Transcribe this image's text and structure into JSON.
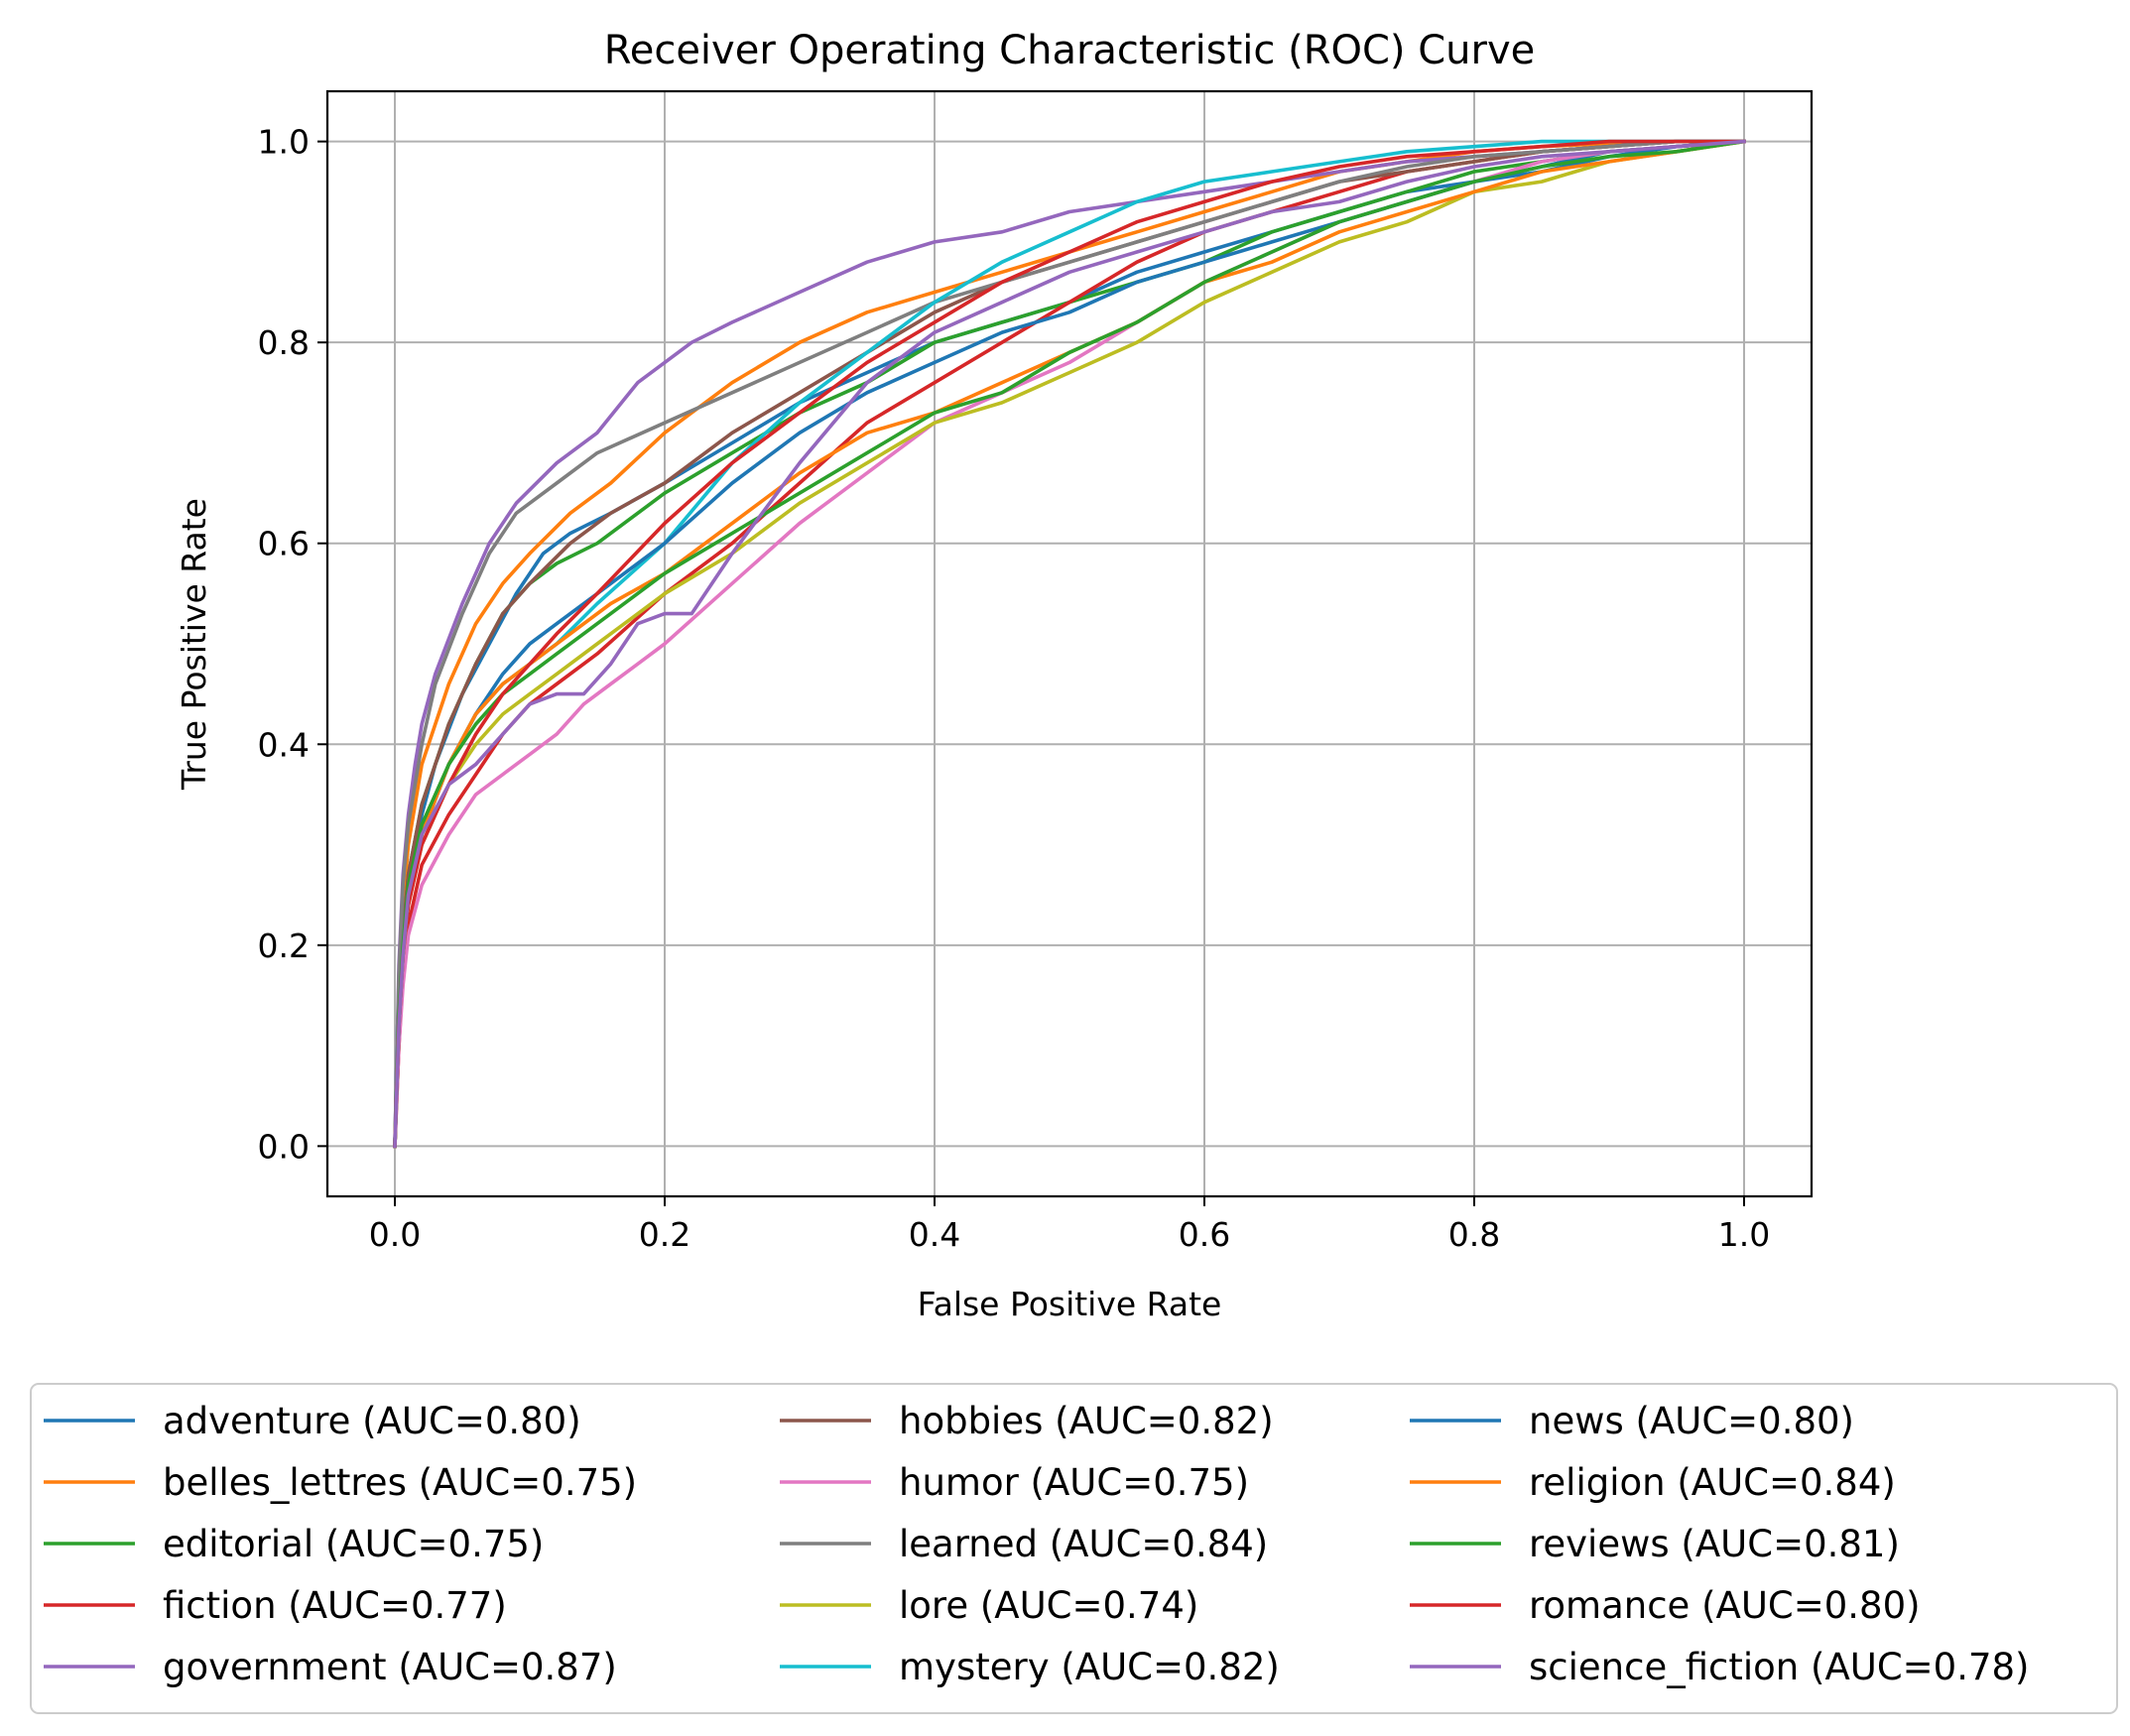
{
  "chart_data": {
    "type": "line",
    "title": "Receiver Operating Characteristic (ROC) Curve",
    "xlabel": "False Positive Rate",
    "ylabel": "True Positive Rate",
    "xlim": [
      -0.05,
      1.05
    ],
    "ylim": [
      -0.05,
      1.05
    ],
    "xticks": [
      "0.0",
      "0.2",
      "0.4",
      "0.6",
      "0.8",
      "1.0"
    ],
    "yticks": [
      "0.0",
      "0.2",
      "0.4",
      "0.6",
      "0.8",
      "1.0"
    ],
    "grid": true,
    "legend_position": "bottom, 3 columns",
    "series": [
      {
        "name": "adventure (AUC=0.80)",
        "color": "#1f77b4",
        "x": [
          0,
          0.002,
          0.005,
          0.01,
          0.02,
          0.03,
          0.05,
          0.07,
          0.09,
          0.11,
          0.13,
          0.16,
          0.2,
          0.25,
          0.3,
          0.35,
          0.4,
          0.45,
          0.5,
          0.55,
          0.6,
          0.65,
          0.7,
          0.75,
          0.8,
          0.85,
          0.9,
          0.95,
          1.0
        ],
        "y": [
          0,
          0.12,
          0.2,
          0.26,
          0.33,
          0.38,
          0.45,
          0.5,
          0.55,
          0.59,
          0.61,
          0.63,
          0.66,
          0.7,
          0.74,
          0.77,
          0.8,
          0.82,
          0.84,
          0.87,
          0.89,
          0.91,
          0.93,
          0.95,
          0.96,
          0.975,
          0.99,
          0.995,
          1.0
        ]
      },
      {
        "name": "belles_lettres (AUC=0.75)",
        "color": "#ff7f0e",
        "x": [
          0,
          0.003,
          0.006,
          0.01,
          0.02,
          0.04,
          0.06,
          0.08,
          0.1,
          0.13,
          0.16,
          0.2,
          0.25,
          0.3,
          0.35,
          0.4,
          0.45,
          0.5,
          0.55,
          0.6,
          0.65,
          0.7,
          0.75,
          0.8,
          0.85,
          0.9,
          0.95,
          1.0
        ],
        "y": [
          0,
          0.15,
          0.24,
          0.3,
          0.38,
          0.46,
          0.52,
          0.56,
          0.59,
          0.63,
          0.66,
          0.71,
          0.76,
          0.8,
          0.83,
          0.85,
          0.87,
          0.89,
          0.91,
          0.93,
          0.95,
          0.97,
          0.98,
          0.99,
          0.995,
          0.998,
          1.0,
          1.0
        ]
      },
      {
        "name": "editorial (AUC=0.75)",
        "color": "#2ca02c",
        "x": [
          0,
          0.003,
          0.006,
          0.01,
          0.02,
          0.04,
          0.06,
          0.08,
          0.1,
          0.12,
          0.15,
          0.2,
          0.25,
          0.3,
          0.35,
          0.4,
          0.45,
          0.5,
          0.55,
          0.6,
          0.65,
          0.7,
          0.75,
          0.8,
          0.85,
          0.9,
          0.95,
          1.0
        ],
        "y": [
          0,
          0.13,
          0.21,
          0.27,
          0.34,
          0.42,
          0.48,
          0.53,
          0.56,
          0.58,
          0.6,
          0.65,
          0.69,
          0.73,
          0.76,
          0.8,
          0.82,
          0.84,
          0.86,
          0.88,
          0.91,
          0.93,
          0.95,
          0.97,
          0.98,
          0.99,
          0.995,
          1.0
        ]
      },
      {
        "name": "fiction (AUC=0.77)",
        "color": "#d62728",
        "x": [
          0,
          0.003,
          0.006,
          0.01,
          0.02,
          0.04,
          0.06,
          0.08,
          0.1,
          0.12,
          0.15,
          0.2,
          0.25,
          0.3,
          0.35,
          0.4,
          0.45,
          0.5,
          0.55,
          0.6,
          0.65,
          0.7,
          0.75,
          0.8,
          0.85,
          0.9,
          0.95,
          1.0
        ],
        "y": [
          0,
          0.1,
          0.17,
          0.22,
          0.28,
          0.33,
          0.37,
          0.41,
          0.44,
          0.46,
          0.49,
          0.55,
          0.6,
          0.66,
          0.72,
          0.76,
          0.8,
          0.84,
          0.88,
          0.91,
          0.93,
          0.95,
          0.97,
          0.98,
          0.99,
          0.995,
          1.0,
          1.0
        ]
      },
      {
        "name": "government (AUC=0.87)",
        "color": "#9467bd",
        "x": [
          0,
          0.003,
          0.006,
          0.01,
          0.015,
          0.02,
          0.03,
          0.05,
          0.07,
          0.09,
          0.12,
          0.15,
          0.18,
          0.22,
          0.25,
          0.3,
          0.35,
          0.4,
          0.45,
          0.5,
          0.55,
          0.6,
          0.65,
          0.7,
          0.75,
          0.8,
          0.85,
          0.9,
          0.95,
          1.0
        ],
        "y": [
          0,
          0.18,
          0.27,
          0.33,
          0.38,
          0.42,
          0.47,
          0.54,
          0.6,
          0.64,
          0.68,
          0.71,
          0.76,
          0.8,
          0.82,
          0.85,
          0.88,
          0.9,
          0.91,
          0.93,
          0.94,
          0.95,
          0.96,
          0.97,
          0.98,
          0.985,
          0.99,
          0.995,
          1.0,
          1.0
        ]
      },
      {
        "name": "hobbies (AUC=0.82)",
        "color": "#8c564b",
        "x": [
          0,
          0.003,
          0.006,
          0.01,
          0.02,
          0.04,
          0.06,
          0.08,
          0.1,
          0.13,
          0.16,
          0.2,
          0.25,
          0.3,
          0.35,
          0.4,
          0.45,
          0.5,
          0.55,
          0.6,
          0.65,
          0.7,
          0.75,
          0.8,
          0.85,
          0.9,
          0.95,
          1.0
        ],
        "y": [
          0,
          0.13,
          0.21,
          0.27,
          0.34,
          0.42,
          0.48,
          0.53,
          0.56,
          0.6,
          0.63,
          0.66,
          0.71,
          0.75,
          0.79,
          0.83,
          0.86,
          0.88,
          0.9,
          0.92,
          0.94,
          0.96,
          0.97,
          0.98,
          0.99,
          0.995,
          1.0,
          1.0
        ]
      },
      {
        "name": "humor (AUC=0.75)",
        "color": "#e377c2",
        "x": [
          0,
          0.003,
          0.006,
          0.01,
          0.02,
          0.04,
          0.06,
          0.08,
          0.1,
          0.12,
          0.14,
          0.16,
          0.18,
          0.2,
          0.25,
          0.3,
          0.35,
          0.4,
          0.45,
          0.5,
          0.55,
          0.6,
          0.65,
          0.7,
          0.75,
          0.8,
          0.85,
          0.9,
          0.95,
          1.0
        ],
        "y": [
          0,
          0.1,
          0.16,
          0.21,
          0.26,
          0.31,
          0.35,
          0.37,
          0.39,
          0.41,
          0.44,
          0.46,
          0.48,
          0.5,
          0.56,
          0.62,
          0.67,
          0.72,
          0.75,
          0.78,
          0.82,
          0.86,
          0.89,
          0.92,
          0.94,
          0.96,
          0.98,
          0.99,
          0.995,
          1.0
        ]
      },
      {
        "name": "learned (AUC=0.84)",
        "color": "#7f7f7f",
        "x": [
          0,
          0.003,
          0.006,
          0.01,
          0.02,
          0.03,
          0.05,
          0.07,
          0.09,
          0.12,
          0.15,
          0.2,
          0.25,
          0.3,
          0.35,
          0.4,
          0.45,
          0.5,
          0.55,
          0.6,
          0.65,
          0.7,
          0.75,
          0.8,
          0.85,
          0.9,
          0.95,
          1.0
        ],
        "y": [
          0,
          0.17,
          0.26,
          0.32,
          0.4,
          0.46,
          0.53,
          0.59,
          0.63,
          0.66,
          0.69,
          0.72,
          0.75,
          0.78,
          0.81,
          0.84,
          0.86,
          0.88,
          0.9,
          0.92,
          0.94,
          0.96,
          0.975,
          0.985,
          0.99,
          0.995,
          1.0,
          1.0
        ]
      },
      {
        "name": "lore (AUC=0.74)",
        "color": "#bcbd22",
        "x": [
          0,
          0.003,
          0.006,
          0.01,
          0.02,
          0.04,
          0.06,
          0.08,
          0.1,
          0.12,
          0.15,
          0.2,
          0.25,
          0.3,
          0.35,
          0.4,
          0.45,
          0.5,
          0.55,
          0.6,
          0.65,
          0.7,
          0.75,
          0.8,
          0.85,
          0.9,
          0.95,
          1.0
        ],
        "y": [
          0,
          0.12,
          0.19,
          0.24,
          0.3,
          0.36,
          0.4,
          0.43,
          0.45,
          0.47,
          0.5,
          0.55,
          0.59,
          0.64,
          0.68,
          0.72,
          0.74,
          0.77,
          0.8,
          0.84,
          0.87,
          0.9,
          0.92,
          0.95,
          0.96,
          0.98,
          0.99,
          1.0
        ]
      },
      {
        "name": "mystery (AUC=0.82)",
        "color": "#17becf",
        "x": [
          0,
          0.003,
          0.006,
          0.01,
          0.02,
          0.04,
          0.06,
          0.08,
          0.1,
          0.12,
          0.15,
          0.2,
          0.25,
          0.3,
          0.35,
          0.4,
          0.45,
          0.5,
          0.55,
          0.6,
          0.65,
          0.7,
          0.75,
          0.8,
          0.85,
          0.9,
          0.95,
          1.0
        ],
        "y": [
          0,
          0.12,
          0.19,
          0.25,
          0.31,
          0.38,
          0.43,
          0.46,
          0.48,
          0.5,
          0.54,
          0.6,
          0.68,
          0.74,
          0.79,
          0.84,
          0.88,
          0.91,
          0.94,
          0.96,
          0.97,
          0.98,
          0.99,
          0.995,
          1.0,
          1.0,
          1.0,
          1.0
        ]
      },
      {
        "name": "news (AUC=0.80)",
        "color": "#1f77b4",
        "x": [
          0,
          0.003,
          0.006,
          0.01,
          0.02,
          0.04,
          0.06,
          0.08,
          0.1,
          0.12,
          0.15,
          0.2,
          0.25,
          0.3,
          0.35,
          0.4,
          0.45,
          0.5,
          0.55,
          0.6,
          0.65,
          0.7,
          0.75,
          0.8,
          0.85,
          0.9,
          0.95,
          1.0
        ],
        "y": [
          0,
          0.12,
          0.19,
          0.25,
          0.31,
          0.38,
          0.43,
          0.47,
          0.5,
          0.52,
          0.55,
          0.6,
          0.66,
          0.71,
          0.75,
          0.78,
          0.81,
          0.83,
          0.86,
          0.88,
          0.9,
          0.92,
          0.94,
          0.96,
          0.97,
          0.985,
          0.995,
          1.0
        ]
      },
      {
        "name": "religion (AUC=0.84)",
        "color": "#ff7f0e",
        "x": [
          0,
          0.003,
          0.006,
          0.01,
          0.02,
          0.04,
          0.06,
          0.08,
          0.1,
          0.13,
          0.16,
          0.2,
          0.25,
          0.3,
          0.35,
          0.4,
          0.45,
          0.5,
          0.55,
          0.6,
          0.65,
          0.7,
          0.75,
          0.8,
          0.85,
          0.9,
          0.95,
          1.0
        ],
        "y": [
          0,
          0.12,
          0.19,
          0.25,
          0.31,
          0.38,
          0.43,
          0.46,
          0.48,
          0.51,
          0.54,
          0.57,
          0.62,
          0.67,
          0.71,
          0.73,
          0.76,
          0.79,
          0.82,
          0.86,
          0.88,
          0.91,
          0.93,
          0.95,
          0.97,
          0.98,
          0.99,
          1.0
        ]
      },
      {
        "name": "reviews (AUC=0.81)",
        "color": "#2ca02c",
        "x": [
          0,
          0.003,
          0.006,
          0.01,
          0.02,
          0.04,
          0.06,
          0.08,
          0.1,
          0.12,
          0.15,
          0.2,
          0.25,
          0.3,
          0.35,
          0.4,
          0.45,
          0.5,
          0.55,
          0.6,
          0.65,
          0.7,
          0.75,
          0.8,
          0.85,
          0.9,
          0.95,
          1.0
        ],
        "y": [
          0,
          0.13,
          0.2,
          0.26,
          0.32,
          0.38,
          0.42,
          0.45,
          0.47,
          0.49,
          0.52,
          0.57,
          0.61,
          0.65,
          0.69,
          0.73,
          0.75,
          0.79,
          0.82,
          0.86,
          0.89,
          0.92,
          0.94,
          0.96,
          0.975,
          0.985,
          0.99,
          1.0
        ]
      },
      {
        "name": "romance (AUC=0.80)",
        "color": "#d62728",
        "x": [
          0,
          0.003,
          0.006,
          0.01,
          0.02,
          0.04,
          0.06,
          0.08,
          0.1,
          0.12,
          0.15,
          0.2,
          0.25,
          0.3,
          0.35,
          0.4,
          0.45,
          0.5,
          0.55,
          0.6,
          0.65,
          0.7,
          0.75,
          0.8,
          0.85,
          0.9,
          0.95,
          1.0
        ],
        "y": [
          0,
          0.12,
          0.19,
          0.24,
          0.3,
          0.36,
          0.41,
          0.45,
          0.48,
          0.51,
          0.55,
          0.62,
          0.68,
          0.73,
          0.78,
          0.82,
          0.86,
          0.89,
          0.92,
          0.94,
          0.96,
          0.975,
          0.985,
          0.99,
          0.995,
          1.0,
          1.0,
          1.0
        ]
      },
      {
        "name": "science_fiction (AUC=0.78)",
        "color": "#9467bd",
        "x": [
          0,
          0.003,
          0.006,
          0.01,
          0.02,
          0.04,
          0.06,
          0.08,
          0.1,
          0.12,
          0.14,
          0.16,
          0.18,
          0.2,
          0.22,
          0.25,
          0.3,
          0.35,
          0.4,
          0.45,
          0.5,
          0.55,
          0.6,
          0.65,
          0.7,
          0.75,
          0.8,
          0.85,
          0.9,
          0.95,
          1.0
        ],
        "y": [
          0,
          0.12,
          0.19,
          0.25,
          0.31,
          0.36,
          0.38,
          0.41,
          0.44,
          0.45,
          0.45,
          0.48,
          0.52,
          0.53,
          0.53,
          0.59,
          0.68,
          0.76,
          0.81,
          0.84,
          0.87,
          0.89,
          0.91,
          0.93,
          0.94,
          0.96,
          0.975,
          0.985,
          0.99,
          0.995,
          1.0
        ]
      }
    ]
  }
}
